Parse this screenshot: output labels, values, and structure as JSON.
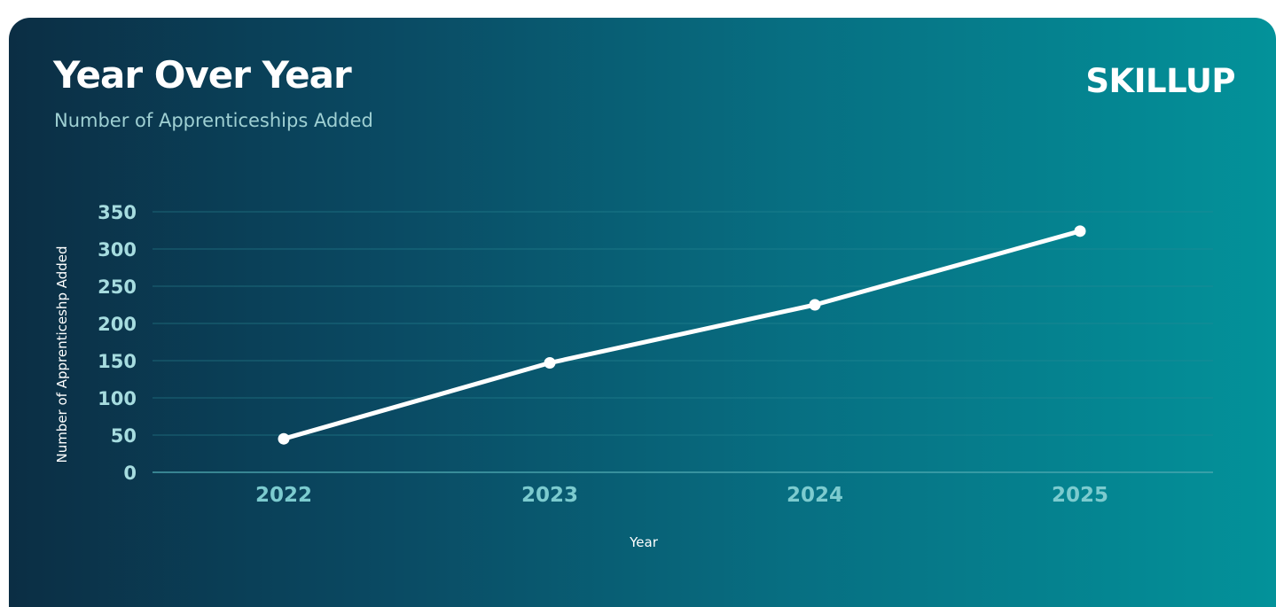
{
  "header": {
    "title": "Year Over Year",
    "subtitle": "Number of Apprenticeships Added",
    "logo_text": "SKILLUP"
  },
  "colors": {
    "background_left": "#0b2e44",
    "background_right": "#03929a",
    "line": "#ffffff",
    "gridline": "#2a8a96",
    "y_tick": "#a6dcdf",
    "x_tick": "#7ccbcf"
  },
  "chart_data": {
    "type": "line",
    "title": "Year Over Year",
    "subtitle": "Number of Apprenticeships Added",
    "xlabel": "Year",
    "ylabel": "Number of Apprenticeshp Added",
    "categories": [
      "2022",
      "2023",
      "2024",
      "2025"
    ],
    "series": [
      {
        "values": [
          45,
          147,
          225,
          324
        ]
      }
    ],
    "ylim": [
      0,
      350
    ],
    "yticks": [
      0,
      50,
      100,
      150,
      200,
      250,
      300,
      350
    ],
    "grid": true,
    "legend": "none"
  }
}
